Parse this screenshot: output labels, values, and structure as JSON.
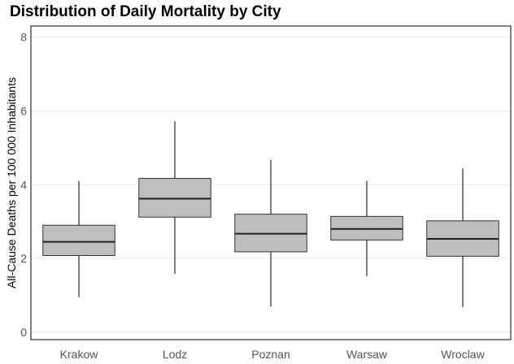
{
  "chart_data": {
    "type": "box",
    "title": "Distribution of Daily Mortality by City",
    "xlabel": "",
    "ylabel": "All-Cause Deaths per 100 000 Inhabitants",
    "ylim": [
      -0.2,
      8.3
    ],
    "yticks": [
      0,
      2,
      4,
      6,
      8
    ],
    "grid": true,
    "box_fill": "#bebebe",
    "categories": [
      "Krakow",
      "Lodz",
      "Poznan",
      "Warsaw",
      "Wroclaw"
    ],
    "boxes": [
      {
        "category": "Krakow",
        "min": 0.95,
        "q1": 2.08,
        "median": 2.45,
        "q3": 2.9,
        "max": 4.1
      },
      {
        "category": "Lodz",
        "min": 1.58,
        "q1": 3.12,
        "median": 3.62,
        "q3": 4.17,
        "max": 5.72
      },
      {
        "category": "Poznan",
        "min": 0.7,
        "q1": 2.18,
        "median": 2.67,
        "q3": 3.2,
        "max": 4.67
      },
      {
        "category": "Warsaw",
        "min": 1.52,
        "q1": 2.5,
        "median": 2.8,
        "q3": 3.14,
        "max": 4.1
      },
      {
        "category": "Wroclaw",
        "min": 0.68,
        "q1": 2.06,
        "median": 2.53,
        "q3": 3.02,
        "max": 4.44
      }
    ]
  }
}
